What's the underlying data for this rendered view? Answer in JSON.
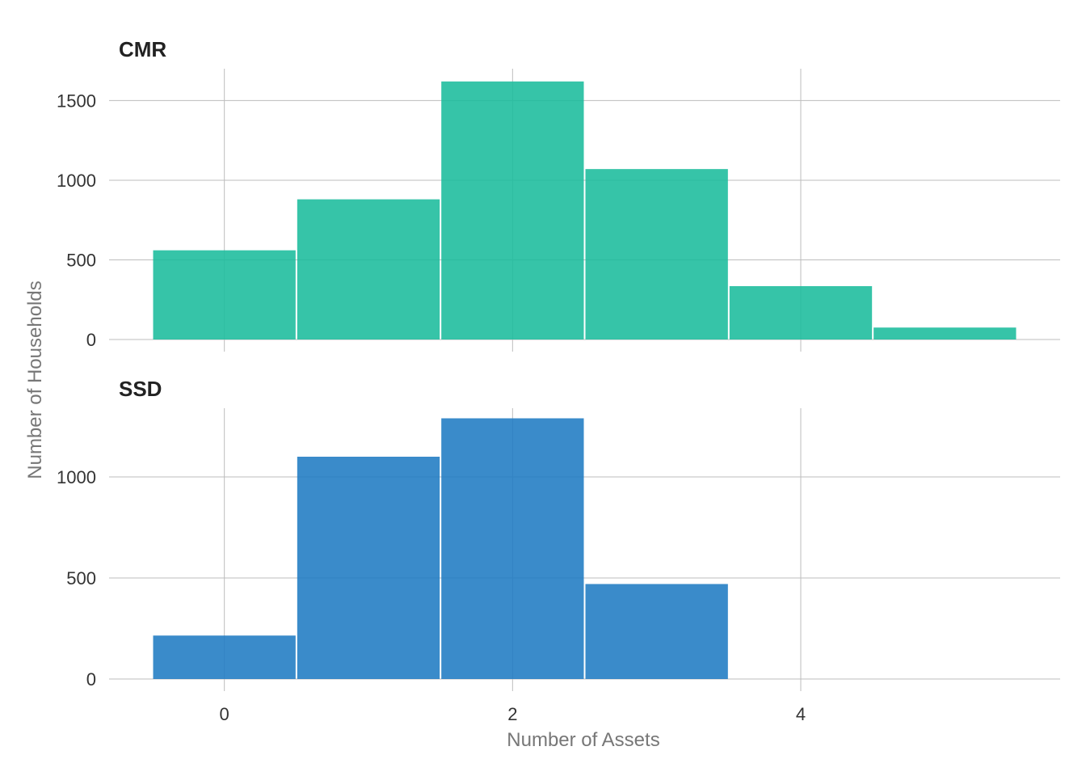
{
  "chart_data": {
    "type": "bar",
    "xlabel": "Number of Assets",
    "ylabel": "Number of Households",
    "x_ticks": [
      0,
      2,
      4
    ],
    "bin_centers": [
      0,
      1,
      2,
      3,
      4,
      5
    ],
    "bin_width": 1,
    "xlim": [
      -0.8,
      5.8
    ],
    "grid": true,
    "legend": "none",
    "panels": [
      {
        "title": "CMR",
        "color": "#1abc9c",
        "values": [
          560,
          880,
          1620,
          1070,
          335,
          75
        ],
        "ylim": [
          0,
          1700
        ],
        "y_ticks": [
          0,
          500,
          1000,
          1500
        ]
      },
      {
        "title": "SSD",
        "color": "#1f7bc3",
        "values": [
          215,
          1100,
          1290,
          470,
          0,
          0
        ],
        "ylim": [
          0,
          1340
        ],
        "y_ticks": [
          0,
          500,
          1000
        ]
      }
    ]
  }
}
